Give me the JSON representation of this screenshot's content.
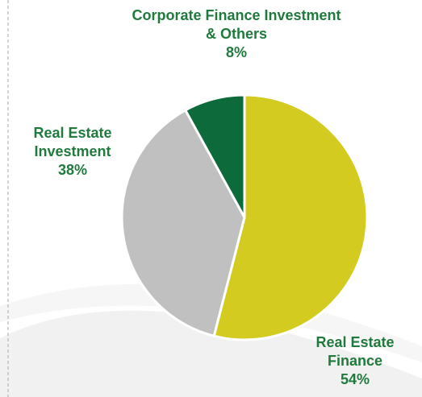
{
  "chart_data": {
    "type": "pie",
    "categories": [
      "Real Estate Finance",
      "Real Estate Investment",
      "Corporate Finance Investment & Others"
    ],
    "values": [
      54,
      38,
      8
    ],
    "value_labels": [
      "54%",
      "38%",
      "8%"
    ],
    "colors": [
      "#d3cb20",
      "#c0c0c0",
      "#0d6a3a"
    ]
  }
}
